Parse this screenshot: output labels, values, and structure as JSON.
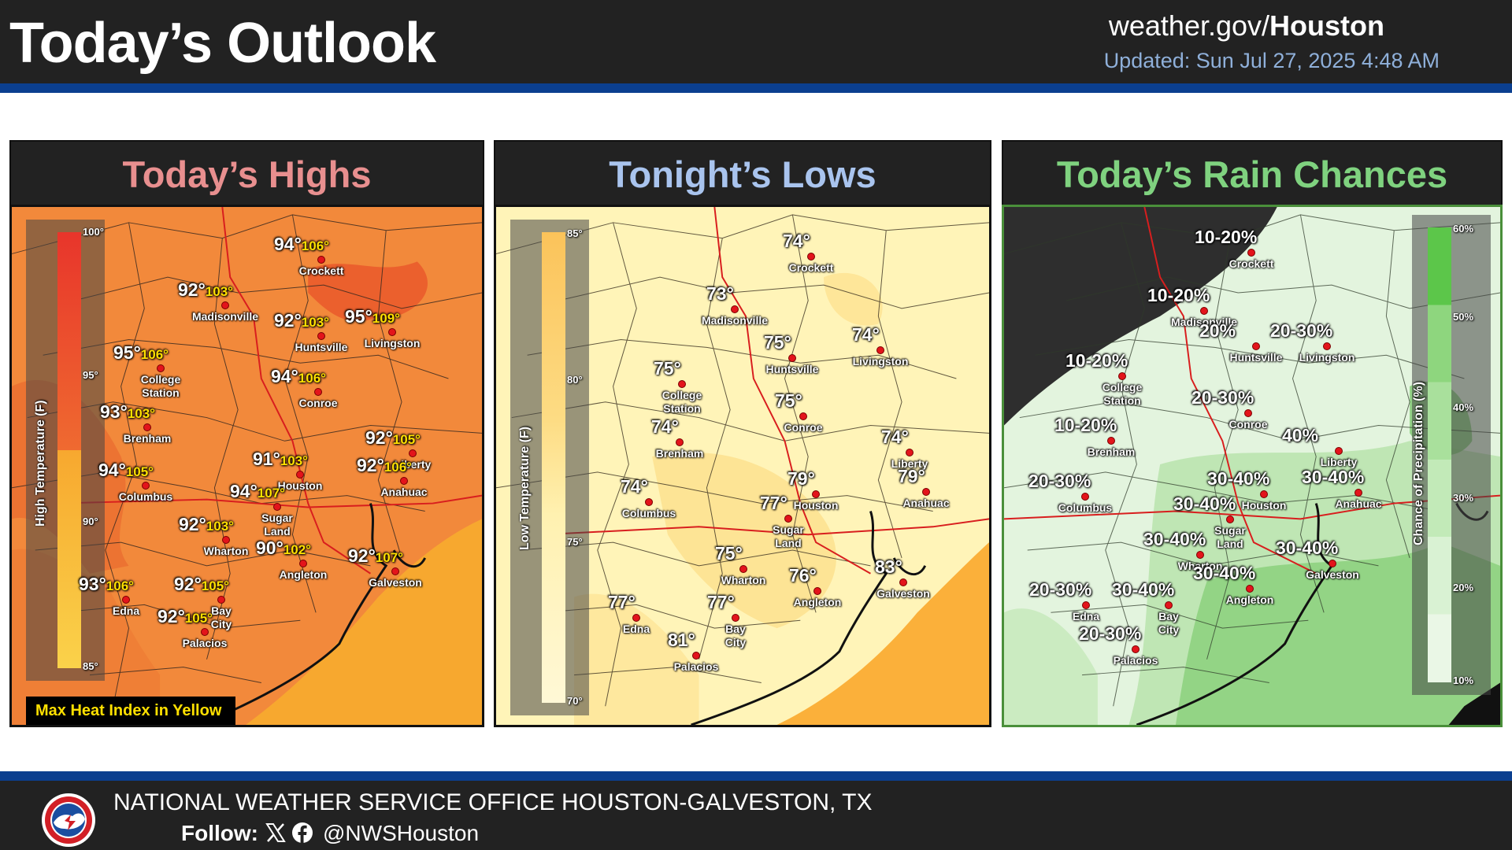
{
  "header": {
    "title": "Today’s Outlook",
    "site_prefix": "weather.gov/",
    "site_office": "Houston",
    "updated": "Updated: Sun Jul 27, 2025 4:48 AM"
  },
  "colors": {
    "highs_title": "#e88f8f",
    "lows_title": "#a9c4ee",
    "rain_title": "#7fd27f",
    "stripe": "#0b3f8f"
  },
  "panels": {
    "highs": {
      "title": "Today’s Highs",
      "scale_label": "High Temperature (F)",
      "scale_ticks": [
        "100°",
        "95°",
        "90°",
        "85°"
      ],
      "note": "Max Heat Index in Yellow",
      "cities": [
        {
          "name": "Crockett",
          "high": "94°",
          "heat_index": "106°"
        },
        {
          "name": "Madisonville",
          "high": "92°",
          "heat_index": "103°"
        },
        {
          "name": "Huntsville",
          "high": "92°",
          "heat_index": "103°"
        },
        {
          "name": "Livingston",
          "high": "95°",
          "heat_index": "109°"
        },
        {
          "name": "College",
          "name2": "Station",
          "high": "95°",
          "heat_index": "106°"
        },
        {
          "name": "Conroe",
          "high": "94°",
          "heat_index": "106°"
        },
        {
          "name": "Brenham",
          "high": "93°",
          "heat_index": "103°"
        },
        {
          "name": "Liberty",
          "high": "92°",
          "heat_index": "105°"
        },
        {
          "name": "Columbus",
          "high": "94°",
          "heat_index": "105°"
        },
        {
          "name": "Houston",
          "high": "91°",
          "heat_index": "103°"
        },
        {
          "name": "Anahuac",
          "high": "92°",
          "heat_index": "106°"
        },
        {
          "name": "Sugar",
          "name2": "Land",
          "high": "94°",
          "heat_index": "107°"
        },
        {
          "name": "Wharton",
          "high": "92°",
          "heat_index": "103°"
        },
        {
          "name": "Galveston",
          "high": "92°",
          "heat_index": "107°"
        },
        {
          "name": "Angleton",
          "high": "90°",
          "heat_index": "102°"
        },
        {
          "name": "Edna",
          "high": "93°",
          "heat_index": "106°"
        },
        {
          "name": "Bay",
          "name2": "City",
          "high": "92°",
          "heat_index": "105°"
        },
        {
          "name": "Palacios",
          "high": "92°",
          "heat_index": "105°"
        }
      ]
    },
    "lows": {
      "title": "Tonight’s Lows",
      "scale_label": "Low Temperature (F)",
      "scale_ticks": [
        "85°",
        "80°",
        "75°",
        "70°"
      ],
      "cities": [
        {
          "name": "Crockett",
          "low": "74°"
        },
        {
          "name": "Madisonville",
          "low": "73°"
        },
        {
          "name": "Huntsville",
          "low": "75°"
        },
        {
          "name": "Livingston",
          "low": "74°"
        },
        {
          "name": "College",
          "name2": "Station",
          "low": "75°"
        },
        {
          "name": "Conroe",
          "low": "75°"
        },
        {
          "name": "Brenham",
          "low": "74°"
        },
        {
          "name": "Liberty",
          "low": "74°"
        },
        {
          "name": "Columbus",
          "low": "74°"
        },
        {
          "name": "Houston",
          "low": "79°"
        },
        {
          "name": "Anahuac",
          "low": "79°"
        },
        {
          "name": "Sugar",
          "name2": "Land",
          "low": "77°"
        },
        {
          "name": "Wharton",
          "low": "75°"
        },
        {
          "name": "Galveston",
          "low": "83°"
        },
        {
          "name": "Angleton",
          "low": "76°"
        },
        {
          "name": "Edna",
          "low": "77°"
        },
        {
          "name": "Bay",
          "name2": "City",
          "low": "77°"
        },
        {
          "name": "Palacios",
          "low": "81°"
        }
      ]
    },
    "rain": {
      "title": "Today’s Rain Chances",
      "scale_label": "Chance of Precipitation (%)",
      "scale_ticks": [
        "60%",
        "50%",
        "40%",
        "30%",
        "20%",
        "10%"
      ],
      "cities": [
        {
          "name": "Crockett",
          "chance": "10-20%"
        },
        {
          "name": "Madisonville",
          "chance": "10-20%"
        },
        {
          "name": "Huntsville",
          "chance": "20%"
        },
        {
          "name": "Livingston",
          "chance": "20-30%"
        },
        {
          "name": "College",
          "name2": "Station",
          "chance": "10-20%"
        },
        {
          "name": "Conroe",
          "chance": "20-30%"
        },
        {
          "name": "Brenham",
          "chance": "10-20%"
        },
        {
          "name": "Liberty",
          "chance": "40%"
        },
        {
          "name": "Columbus",
          "chance": "20-30%"
        },
        {
          "name": "Houston",
          "chance": "30-40%"
        },
        {
          "name": "Anahuac",
          "chance": "30-40%"
        },
        {
          "name": "Sugar",
          "name2": "Land",
          "chance": "30-40%"
        },
        {
          "name": "Wharton",
          "chance": "30-40%"
        },
        {
          "name": "Galveston",
          "chance": "30-40%"
        },
        {
          "name": "Angleton",
          "chance": "30-40%"
        },
        {
          "name": "Edna",
          "chance": "20-30%"
        },
        {
          "name": "Bay",
          "name2": "City",
          "chance": "30-40%"
        },
        {
          "name": "Palacios",
          "chance": "20-30%"
        }
      ]
    }
  },
  "footer": {
    "office": "NATIONAL WEATHER SERVICE OFFICE HOUSTON-GALVESTON, TX",
    "follow_label": "Follow:",
    "handle": "@NWSHouston",
    "icons": [
      "nws-logo-icon",
      "x-icon",
      "facebook-icon"
    ]
  }
}
